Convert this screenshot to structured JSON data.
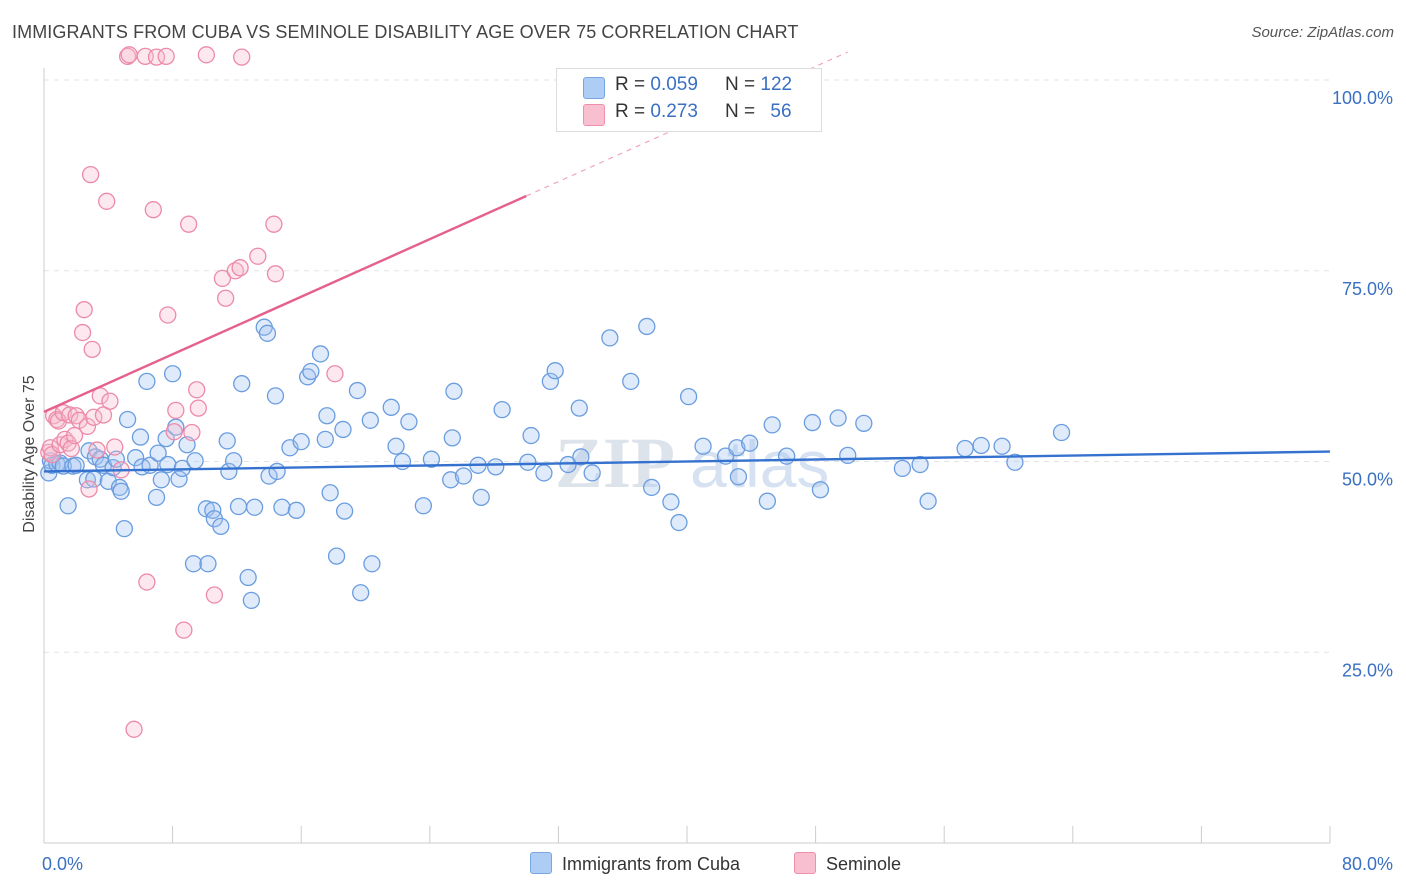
{
  "title": "IMMIGRANTS FROM CUBA VS SEMINOLE DISABILITY AGE OVER 75 CORRELATION CHART",
  "source": "Source: ZipAtlas.com",
  "watermark": {
    "zip": "ZIP",
    "atlas": "atlas"
  },
  "legend_stats": [
    {
      "r_label": "R =",
      "r_value": "0.059",
      "n_label": "N =",
      "n_value": "122",
      "color": "#aecdf4",
      "border": "#7aa7e0"
    },
    {
      "r_label": "R =",
      "r_value": "0.273",
      "n_label": "N =",
      "n_value": "56",
      "color": "#f8bfd0",
      "border": "#ee8fac"
    }
  ],
  "chart_data": {
    "type": "scatter",
    "title": "IMMIGRANTS FROM CUBA VS SEMINOLE DISABILITY AGE OVER 75 CORRELATION CHART",
    "xlabel": "",
    "ylabel": "Disability Age Over 75",
    "xlim": [
      0,
      80
    ],
    "ylim": [
      0,
      100
    ],
    "x_tick_labels": [
      "0.0%",
      "80.0%"
    ],
    "y_tick_labels": [
      "25.0%",
      "50.0%",
      "75.0%",
      "100.0%"
    ],
    "y_ticks": [
      25,
      50,
      75,
      100
    ],
    "grid": true,
    "legend_position": "bottom",
    "series": [
      {
        "name": "Immigrants from Cuba",
        "color": "#6a9de0",
        "fill": "rgba(164,196,240,0.35)",
        "trend": {
          "x": [
            0,
            80
          ],
          "y": [
            48.7,
            51.3
          ],
          "color": "#3572cf"
        },
        "points": [
          [
            0.3,
            48.5
          ],
          [
            0.4,
            50.1
          ],
          [
            0.5,
            49.5
          ],
          [
            0.8,
            49.7
          ],
          [
            1.0,
            49.8
          ],
          [
            1.2,
            49.4
          ],
          [
            1.5,
            44.2
          ],
          [
            1.8,
            49.4
          ],
          [
            2.0,
            49.5
          ],
          [
            2.7,
            47.6
          ],
          [
            2.8,
            51.4
          ],
          [
            3.1,
            47.7
          ],
          [
            3.2,
            50.6
          ],
          [
            3.5,
            50.3
          ],
          [
            3.7,
            49.5
          ],
          [
            4.0,
            47.4
          ],
          [
            4.3,
            49.2
          ],
          [
            4.5,
            50.3
          ],
          [
            4.7,
            46.6
          ],
          [
            4.8,
            46.1
          ],
          [
            5.0,
            41.2
          ],
          [
            5.2,
            55.5
          ],
          [
            5.7,
            50.5
          ],
          [
            6.0,
            53.2
          ],
          [
            6.1,
            49.3
          ],
          [
            6.4,
            60.5
          ],
          [
            6.6,
            49.5
          ],
          [
            7.0,
            45.3
          ],
          [
            7.1,
            51.1
          ],
          [
            7.3,
            47.6
          ],
          [
            7.6,
            53.0
          ],
          [
            7.7,
            49.6
          ],
          [
            8.0,
            61.5
          ],
          [
            8.2,
            54.5
          ],
          [
            8.4,
            47.7
          ],
          [
            8.6,
            49.1
          ],
          [
            8.9,
            52.2
          ],
          [
            9.3,
            36.6
          ],
          [
            9.4,
            50.1
          ],
          [
            10.1,
            43.8
          ],
          [
            10.2,
            36.6
          ],
          [
            10.5,
            43.6
          ],
          [
            10.6,
            42.5
          ],
          [
            11.0,
            41.5
          ],
          [
            11.4,
            52.7
          ],
          [
            11.5,
            48.7
          ],
          [
            11.8,
            50.1
          ],
          [
            12.1,
            44.1
          ],
          [
            12.3,
            60.2
          ],
          [
            12.7,
            34.8
          ],
          [
            12.9,
            31.8
          ],
          [
            13.1,
            44.0
          ],
          [
            13.7,
            67.6
          ],
          [
            13.9,
            66.8
          ],
          [
            14.0,
            48.1
          ],
          [
            14.4,
            58.6
          ],
          [
            14.5,
            48.7
          ],
          [
            14.8,
            44.0
          ],
          [
            15.3,
            51.8
          ],
          [
            15.7,
            43.6
          ],
          [
            16.0,
            52.6
          ],
          [
            16.4,
            61.1
          ],
          [
            16.6,
            61.8
          ],
          [
            17.2,
            64.1
          ],
          [
            17.5,
            52.9
          ],
          [
            17.6,
            56.0
          ],
          [
            17.8,
            45.9
          ],
          [
            18.2,
            37.6
          ],
          [
            18.6,
            54.2
          ],
          [
            18.7,
            43.5
          ],
          [
            19.5,
            59.3
          ],
          [
            19.7,
            32.8
          ],
          [
            20.3,
            55.4
          ],
          [
            20.4,
            36.6
          ],
          [
            21.6,
            57.1
          ],
          [
            21.9,
            52.0
          ],
          [
            22.3,
            50.0
          ],
          [
            22.7,
            55.2
          ],
          [
            23.6,
            44.2
          ],
          [
            24.1,
            50.3
          ],
          [
            25.3,
            47.6
          ],
          [
            25.4,
            53.1
          ],
          [
            25.5,
            59.2
          ],
          [
            26.1,
            48.1
          ],
          [
            27.0,
            49.5
          ],
          [
            27.2,
            45.3
          ],
          [
            28.1,
            49.3
          ],
          [
            28.5,
            56.8
          ],
          [
            30.1,
            49.9
          ],
          [
            30.3,
            53.4
          ],
          [
            31.1,
            48.5
          ],
          [
            31.5,
            60.5
          ],
          [
            31.8,
            61.9
          ],
          [
            32.6,
            49.6
          ],
          [
            33.3,
            57.0
          ],
          [
            33.4,
            50.6
          ],
          [
            34.1,
            48.5
          ],
          [
            35.2,
            66.2
          ],
          [
            36.5,
            60.5
          ],
          [
            37.5,
            67.7
          ],
          [
            37.8,
            46.6
          ],
          [
            39.0,
            44.7
          ],
          [
            39.5,
            42.0
          ],
          [
            40.1,
            58.5
          ],
          [
            41.0,
            52.0
          ],
          [
            42.4,
            50.7
          ],
          [
            43.1,
            51.8
          ],
          [
            43.2,
            48.0
          ],
          [
            43.9,
            52.4
          ],
          [
            45.0,
            44.8
          ],
          [
            45.3,
            54.8
          ],
          [
            46.2,
            50.7
          ],
          [
            47.8,
            55.1
          ],
          [
            48.3,
            46.3
          ],
          [
            49.4,
            55.7
          ],
          [
            50.0,
            50.8
          ],
          [
            51.0,
            55.0
          ],
          [
            53.4,
            49.1
          ],
          [
            54.5,
            49.6
          ],
          [
            55.0,
            44.8
          ],
          [
            57.3,
            51.7
          ],
          [
            58.3,
            52.1
          ],
          [
            59.6,
            52.0
          ],
          [
            60.4,
            49.9
          ],
          [
            63.3,
            53.8
          ]
        ]
      },
      {
        "name": "Seminole",
        "color": "#ec8aa9",
        "fill": "rgba(247,188,206,0.35)",
        "trend": {
          "x": [
            0,
            30
          ],
          "y": [
            56.5,
            84.8
          ],
          "extend_to_x": 50,
          "color": "#e5608c"
        },
        "points": [
          [
            0.3,
            51.2
          ],
          [
            0.4,
            51.8
          ],
          [
            0.5,
            50.9
          ],
          [
            0.6,
            56.0
          ],
          [
            0.8,
            55.5
          ],
          [
            0.9,
            55.3
          ],
          [
            1.0,
            52.2
          ],
          [
            1.2,
            56.4
          ],
          [
            1.3,
            52.9
          ],
          [
            1.5,
            52.4
          ],
          [
            1.6,
            56.1
          ],
          [
            1.7,
            51.7
          ],
          [
            1.9,
            53.4
          ],
          [
            2.0,
            56.0
          ],
          [
            2.2,
            55.4
          ],
          [
            2.4,
            66.9
          ],
          [
            2.5,
            69.9
          ],
          [
            2.7,
            54.6
          ],
          [
            2.8,
            46.4
          ],
          [
            2.9,
            87.6
          ],
          [
            3.0,
            64.7
          ],
          [
            3.1,
            55.8
          ],
          [
            3.3,
            51.5
          ],
          [
            3.5,
            58.6
          ],
          [
            3.7,
            56.1
          ],
          [
            3.9,
            84.1
          ],
          [
            4.1,
            57.9
          ],
          [
            4.4,
            51.9
          ],
          [
            4.8,
            48.9
          ],
          [
            5.2,
            103.1
          ],
          [
            5.3,
            103.3
          ],
          [
            5.6,
            14.9
          ],
          [
            6.3,
            103.1
          ],
          [
            6.4,
            34.2
          ],
          [
            6.8,
            83.0
          ],
          [
            7.0,
            103.0
          ],
          [
            7.6,
            103.1
          ],
          [
            7.7,
            69.2
          ],
          [
            8.1,
            53.9
          ],
          [
            8.2,
            56.7
          ],
          [
            8.7,
            27.9
          ],
          [
            9.0,
            81.1
          ],
          [
            9.2,
            53.8
          ],
          [
            9.5,
            59.4
          ],
          [
            9.6,
            57.0
          ],
          [
            10.1,
            103.3
          ],
          [
            10.6,
            32.5
          ],
          [
            11.1,
            74.0
          ],
          [
            11.3,
            71.4
          ],
          [
            11.9,
            75.0
          ],
          [
            12.2,
            75.4
          ],
          [
            12.3,
            103.0
          ],
          [
            13.3,
            76.9
          ],
          [
            14.3,
            81.1
          ],
          [
            14.4,
            74.6
          ],
          [
            18.1,
            61.5
          ]
        ]
      }
    ]
  },
  "bottom_legend": [
    {
      "label": "Immigrants from Cuba",
      "color": "#aecdf4",
      "border": "#7aa7e0"
    },
    {
      "label": "Seminole",
      "color": "#f8bfd0",
      "border": "#ee8fac"
    }
  ]
}
